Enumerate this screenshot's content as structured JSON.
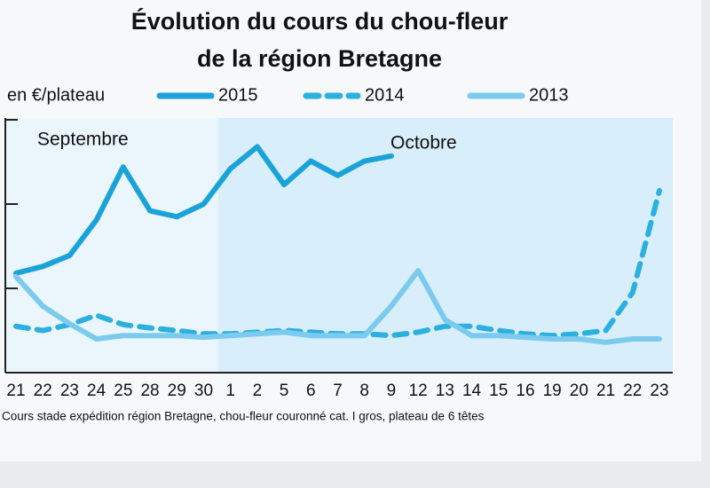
{
  "chart_data": {
    "type": "line",
    "title": [
      "Évolution du cours du chou-fleur",
      "de la région Bretagne"
    ],
    "ylabel": "en €/plateau",
    "annotations": [
      "Septembre",
      "Octobre"
    ],
    "footnote": "Cours stade expédition région Bretagne, chou-fleur couronné cat. I gros, plateau de 6 têtes",
    "categories": [
      "21",
      "22",
      "23",
      "24",
      "25",
      "28",
      "29",
      "30",
      "1",
      "2",
      "5",
      "6",
      "7",
      "8",
      "9",
      "12",
      "13",
      "14",
      "15",
      "16",
      "19",
      "20",
      "21",
      "22",
      "23"
    ],
    "series": [
      {
        "name": "2015",
        "color": "#1aa3d9",
        "dashed": false,
        "values": [
          1.18,
          1.26,
          1.39,
          1.81,
          2.44,
          1.92,
          1.85,
          2.0,
          2.42,
          2.68,
          2.23,
          2.51,
          2.34,
          2.51,
          2.57,
          null,
          null,
          null,
          null,
          null,
          null,
          null,
          null,
          null,
          null
        ]
      },
      {
        "name": "2014",
        "color": "#2bb0e0",
        "dashed": true,
        "values": [
          0.55,
          0.5,
          0.57,
          0.68,
          0.57,
          0.53,
          0.5,
          0.46,
          0.46,
          0.48,
          0.5,
          0.48,
          0.46,
          0.46,
          0.44,
          0.48,
          0.55,
          0.55,
          0.5,
          0.46,
          0.44,
          0.46,
          0.5,
          0.95,
          2.16
        ]
      },
      {
        "name": "2013",
        "color": "#7ccbef",
        "dashed": false,
        "values": [
          1.14,
          0.79,
          0.58,
          0.4,
          0.44,
          0.44,
          0.44,
          0.42,
          0.44,
          0.46,
          0.48,
          0.44,
          0.44,
          0.44,
          0.79,
          1.21,
          0.63,
          0.44,
          0.44,
          0.42,
          0.4,
          0.4,
          0.36,
          0.4,
          0.4
        ]
      }
    ],
    "ylim": [
      0,
      3
    ],
    "yticks": [
      1,
      2,
      3
    ],
    "ytick_labels": false
  }
}
